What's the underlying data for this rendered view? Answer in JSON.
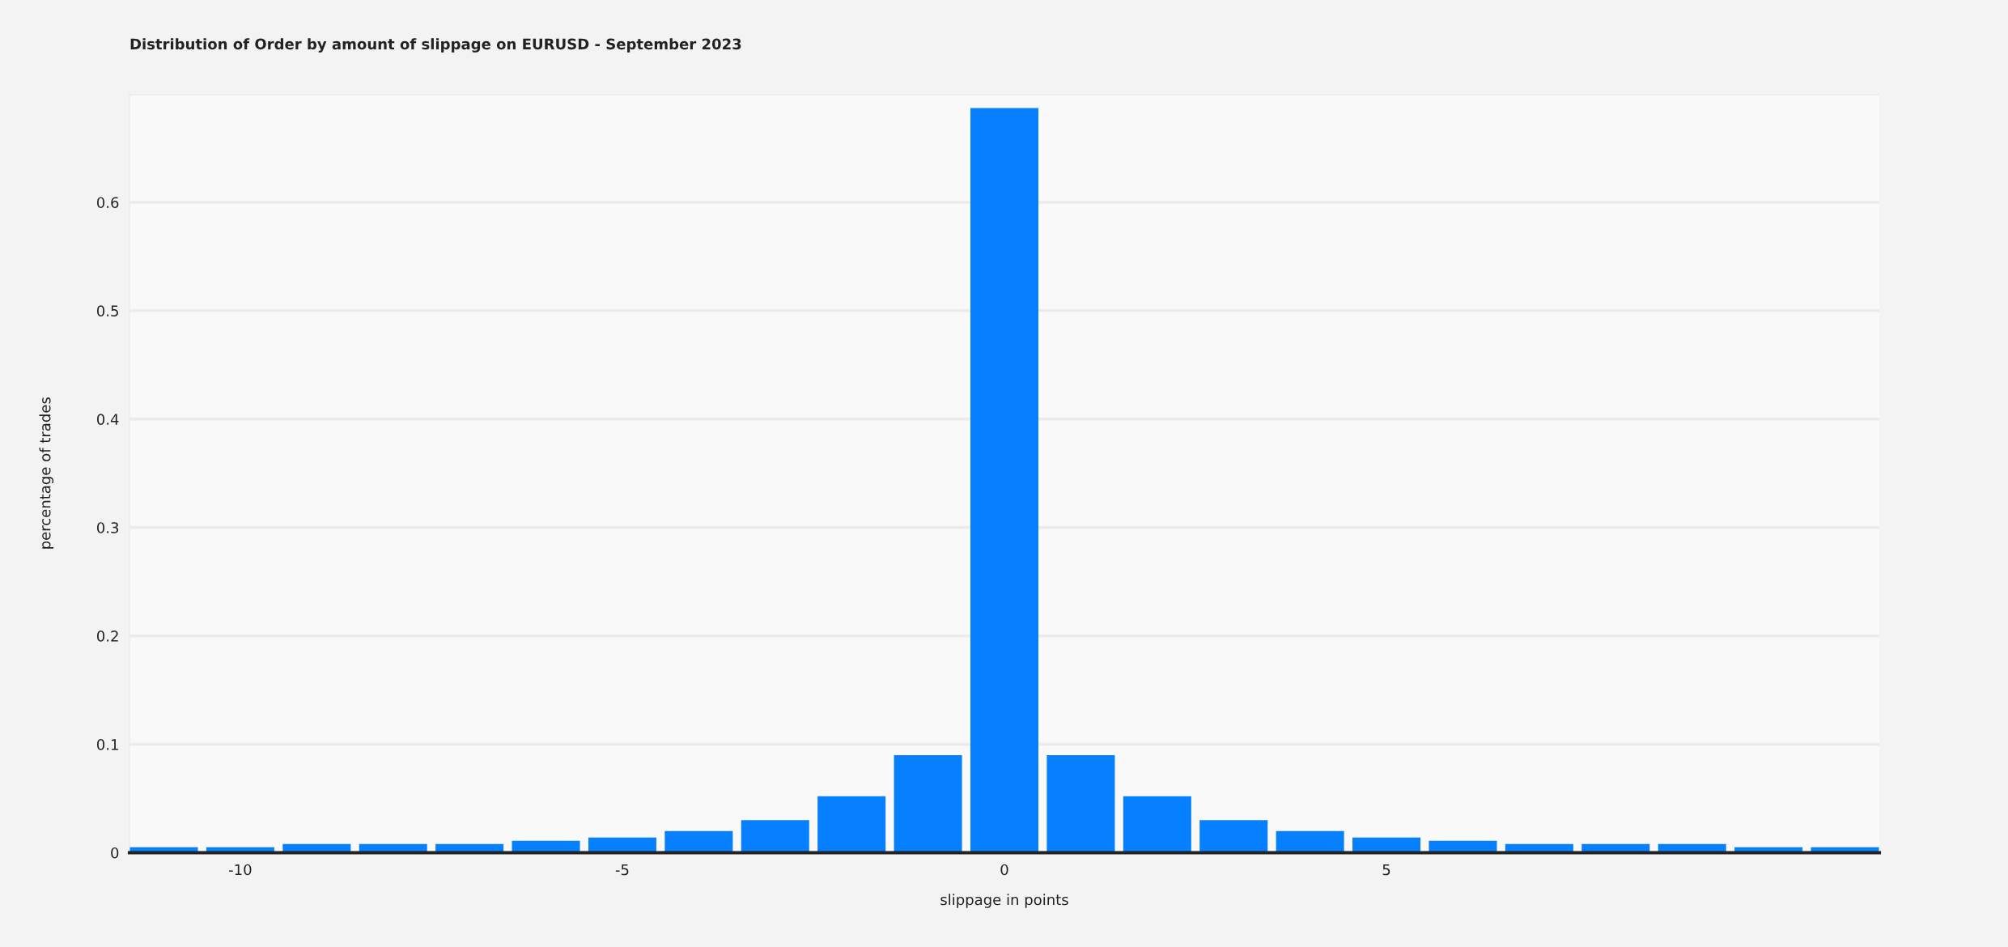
{
  "chart_data": {
    "type": "bar",
    "title": "Distribution of Order by amount of slippage on EURUSD - September 2023",
    "xlabel": "slippage in points",
    "ylabel": "percentage of trades",
    "x": [
      -11,
      -10,
      -9,
      -8,
      -7,
      -6,
      -5,
      -4,
      -3,
      -2,
      -1,
      0,
      1,
      2,
      3,
      4,
      5,
      6,
      7,
      8,
      9,
      10,
      11
    ],
    "values": [
      0.005,
      0.005,
      0.008,
      0.008,
      0.008,
      0.011,
      0.014,
      0.02,
      0.03,
      0.052,
      0.09,
      0.687,
      0.09,
      0.052,
      0.03,
      0.02,
      0.014,
      0.011,
      0.008,
      0.008,
      0.008,
      0.005,
      0.005
    ],
    "color": "#0780ff",
    "xlim": [
      -11.45,
      11.45
    ],
    "xticks": [
      -10,
      -5,
      0,
      5
    ],
    "ylim": [
      0,
      0.7
    ],
    "yticks": [
      0,
      0.1,
      0.2,
      0.3,
      0.4,
      0.5,
      0.6,
      {
        "value": 0.7,
        "label": null
      }
    ],
    "grid": "y"
  }
}
